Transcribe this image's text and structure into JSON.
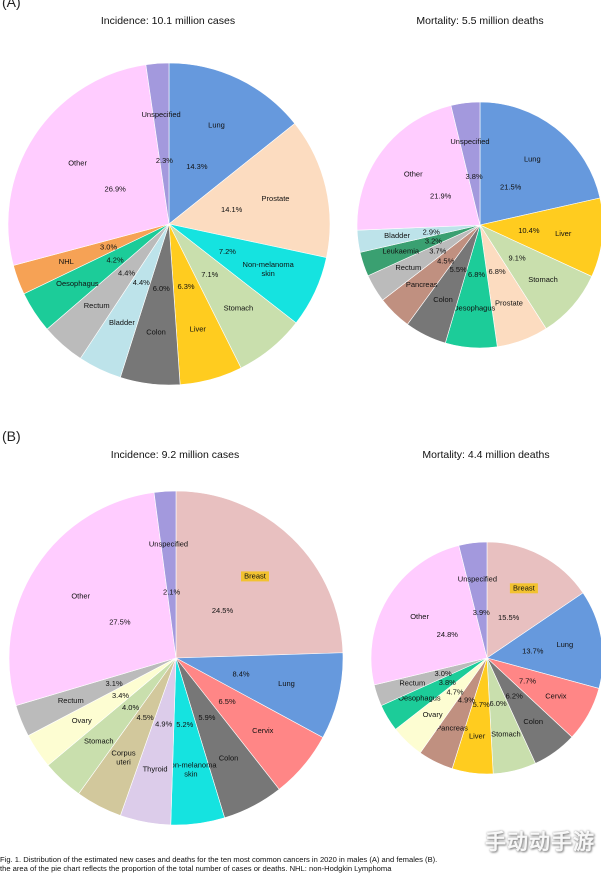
{
  "panels": [
    {
      "label": "(A)"
    },
    {
      "label": "(B)"
    }
  ],
  "caption": {
    "line1": "Fig. 1. Distribution of the estimated new cases and deaths for the ten most common cancers in 2020 in males (A) and females (B).",
    "line2": "the area of the pie chart reflects the proportion of the total number of cases or deaths. NHL: non-Hodgkin Lymphoma"
  },
  "watermark": "手动动手游",
  "colors": {
    "Lung": "#6699dd",
    "Prostate": "#fcdcc0",
    "Non-melanoma skin": "#15e3e0",
    "Stomach": "#c9dfad",
    "Liver": "#ffcc1f",
    "Colon": "#777777",
    "Bladder": "#bde3ea",
    "Rectum": "#bbbbbb",
    "Oesophagus": "#1ccc99",
    "NHL": "#f6a255",
    "Other": "#ffccff",
    "Unspecified": "#a399dd",
    "Pancreas": "#c09080",
    "Leukaemia": "#3aa071",
    "Breast": "#e8c0c0",
    "Cervix": "#ff8686",
    "Thyroid": "#dcccea",
    "Corpus uteri": "#d2c89c",
    "Ovary": "#fdfdd2"
  },
  "chart_data": [
    {
      "type": "pie",
      "title": "Incidence: 10.1 million cases",
      "slices": [
        {
          "label": "Lung",
          "value": 14.3
        },
        {
          "label": "Prostate",
          "value": 14.1
        },
        {
          "label": "Non-melanoma skin",
          "value": 7.2
        },
        {
          "label": "Stomach",
          "value": 7.1
        },
        {
          "label": "Liver",
          "value": 6.3
        },
        {
          "label": "Colon",
          "value": 6.0
        },
        {
          "label": "Bladder",
          "value": 4.4
        },
        {
          "label": "Rectum",
          "value": 4.4
        },
        {
          "label": "Oesophagus",
          "value": 4.2
        },
        {
          "label": "NHL",
          "value": 3.0
        },
        {
          "label": "Other",
          "value": 26.9
        },
        {
          "label": "Unspecified",
          "value": 2.3
        }
      ]
    },
    {
      "type": "pie",
      "title": "Mortality: 5.5 million deaths",
      "slices": [
        {
          "label": "Lung",
          "value": 21.5
        },
        {
          "label": "Liver",
          "value": 10.4
        },
        {
          "label": "Stomach",
          "value": 9.1
        },
        {
          "label": "Prostate",
          "value": 6.8
        },
        {
          "label": "Oesophagus",
          "value": 6.8
        },
        {
          "label": "Colon",
          "value": 5.5
        },
        {
          "label": "Pancreas",
          "value": 4.5
        },
        {
          "label": "Rectum",
          "value": 3.7
        },
        {
          "label": "Leukaemia",
          "value": 3.2
        },
        {
          "label": "Bladder",
          "value": 2.9
        },
        {
          "label": "Other",
          "value": 21.9
        },
        {
          "label": "Unspecified",
          "value": 3.8
        }
      ]
    },
    {
      "type": "pie",
      "title": "Incidence: 9.2 million cases",
      "slices": [
        {
          "label": "Breast",
          "value": 24.5
        },
        {
          "label": "Lung",
          "value": 8.4
        },
        {
          "label": "Cervix",
          "value": 6.5
        },
        {
          "label": "Colon",
          "value": 5.9
        },
        {
          "label": "Non-melanoma skin",
          "value": 5.2
        },
        {
          "label": "Thyroid",
          "value": 4.9
        },
        {
          "label": "Corpus uteri",
          "value": 4.5
        },
        {
          "label": "Stomach",
          "value": 4.0
        },
        {
          "label": "Ovary",
          "value": 3.4
        },
        {
          "label": "Rectum",
          "value": 3.1
        },
        {
          "label": "Other",
          "value": 27.5
        },
        {
          "label": "Unspecified",
          "value": 2.1
        }
      ]
    },
    {
      "type": "pie",
      "title": "Mortality: 4.4 million deaths",
      "slices": [
        {
          "label": "Breast",
          "value": 15.5
        },
        {
          "label": "Lung",
          "value": 13.7
        },
        {
          "label": "Cervix",
          "value": 7.7
        },
        {
          "label": "Colon",
          "value": 6.2
        },
        {
          "label": "Stomach",
          "value": 6.0
        },
        {
          "label": "Liver",
          "value": 5.7
        },
        {
          "label": "Pancreas",
          "value": 4.9
        },
        {
          "label": "Ovary",
          "value": 4.7
        },
        {
          "label": "Oesophagus",
          "value": 3.8
        },
        {
          "label": "Rectum",
          "value": 3.0
        },
        {
          "label": "Other",
          "value": 24.8
        },
        {
          "label": "Unspecified",
          "value": 3.9
        }
      ]
    }
  ]
}
